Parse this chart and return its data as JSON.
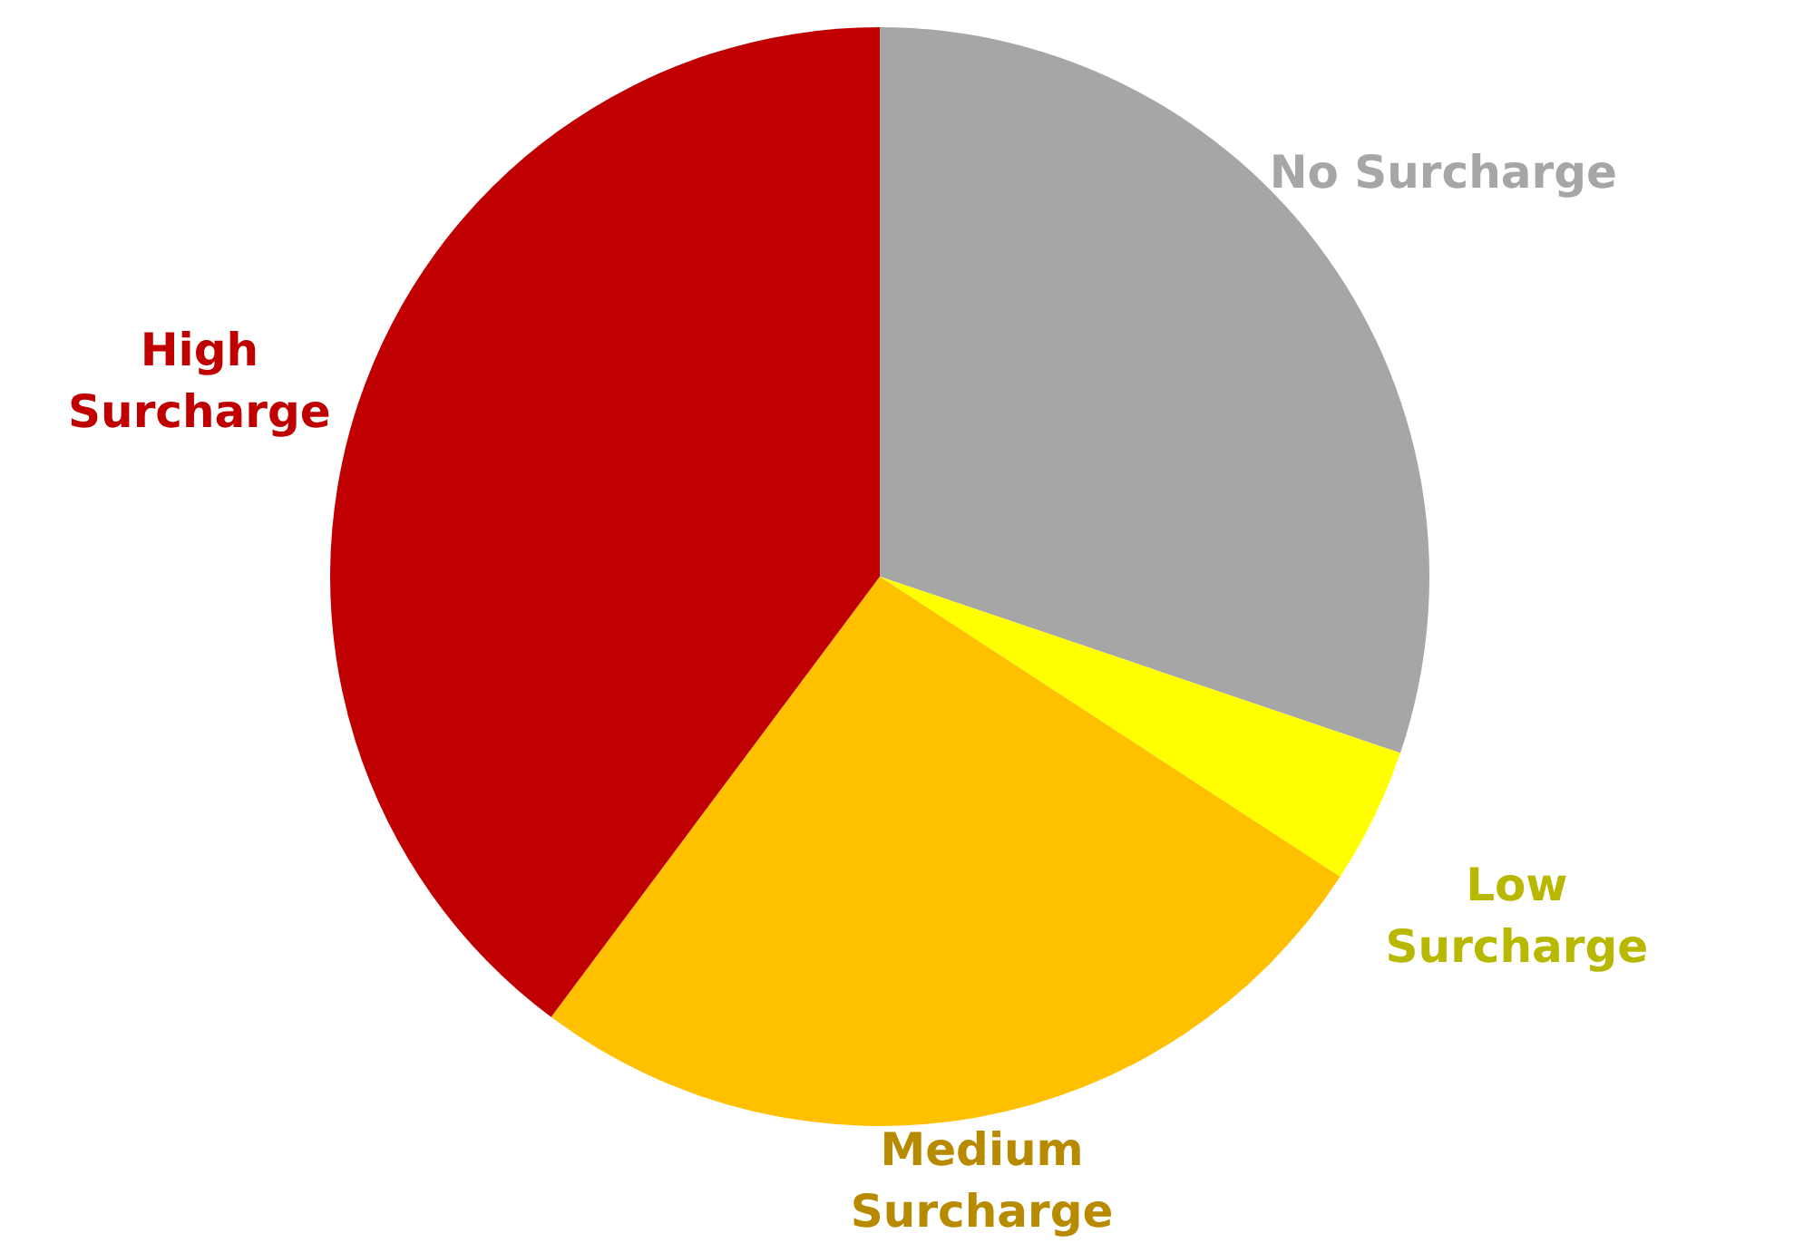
{
  "chart_data": {
    "type": "pie",
    "categories": [
      "No Surcharge",
      "Low\nSurcharge",
      "Medium\nSurcharge",
      "High\nSurcharge"
    ],
    "values": [
      30.2,
      4.0,
      26.0,
      39.8
    ],
    "colors": [
      "#a6a6a6",
      "#ffff00",
      "#ffc000",
      "#c00000"
    ]
  }
}
